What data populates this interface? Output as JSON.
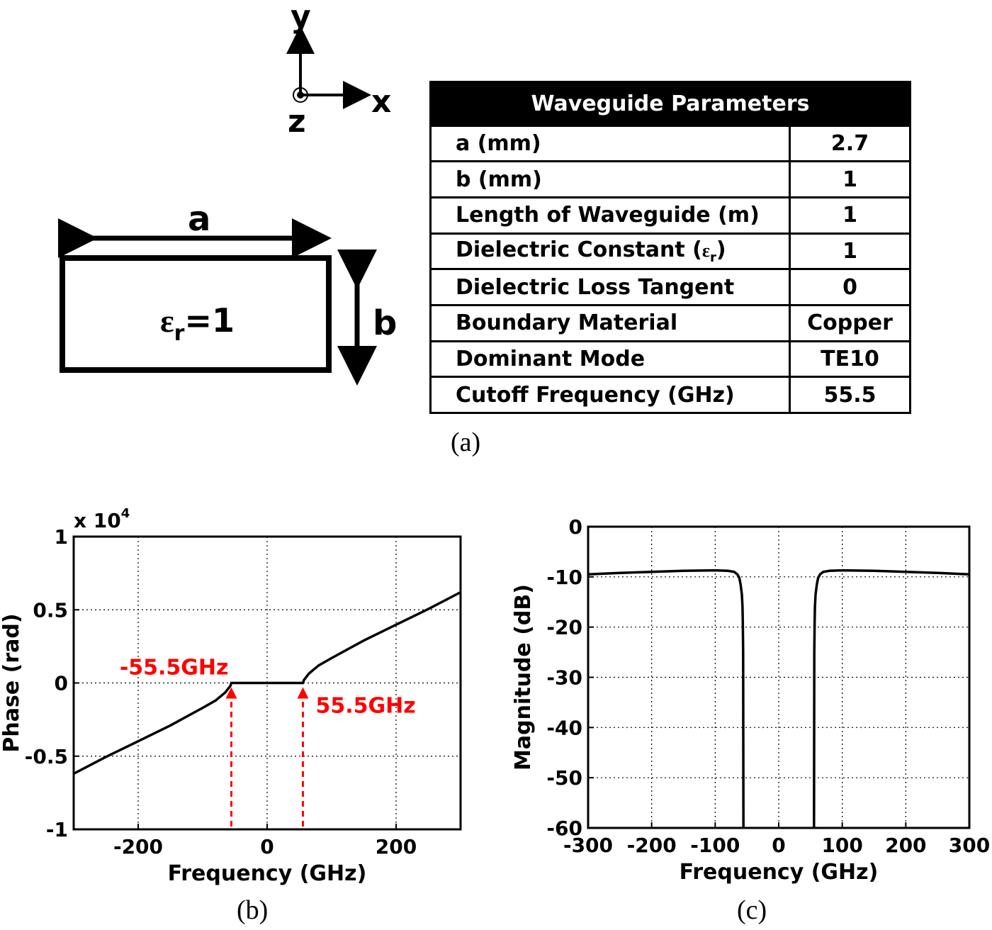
{
  "axes": {
    "y": "y",
    "x": "x",
    "z": "z"
  },
  "cross_section": {
    "width_label": "a",
    "height_label": "b",
    "eps_symbol": "ε",
    "eps_sub": "r",
    "eps_value": "=1"
  },
  "table": {
    "title": "Waveguide Parameters",
    "rows": [
      {
        "label": "a (mm)",
        "value": "2.7"
      },
      {
        "label": "b (mm)",
        "value": "1"
      },
      {
        "label": "Length of Waveguide (m)",
        "value": "1"
      },
      {
        "label": "Dielectric Constant (",
        "label_sym": "ε",
        "label_sub": "r",
        "label_end": ")",
        "value": "1"
      },
      {
        "label": "Dielectric Loss Tangent",
        "value": "0"
      },
      {
        "label": "Boundary Material",
        "value": "Copper"
      },
      {
        "label": "Dominant Mode",
        "value": "TE10"
      },
      {
        "label": "Cutoff Frequency (GHz)",
        "value": "55.5"
      }
    ]
  },
  "subfigure_labels": [
    "(a)",
    "(b)",
    "(c)"
  ],
  "chart_data": [
    {
      "type": "line",
      "xlabel": "Frequency (GHz)",
      "ylabel": "Phase (rad)",
      "y_multiplier": "x 10",
      "y_multiplier_exp": "4",
      "xlim": [
        -300,
        300
      ],
      "ylim": [
        -1,
        1
      ],
      "x_ticks": [
        -200,
        0,
        200
      ],
      "y_ticks": [
        1,
        0.5,
        0,
        -0.5,
        -1
      ],
      "x_tick_labels": [
        "-200",
        "0",
        "200"
      ],
      "y_tick_labels": [
        "1",
        "0.5",
        "0",
        "-0.5",
        "-1"
      ],
      "grid": true,
      "series": [
        {
          "x": [
            -300,
            -250,
            -200,
            -150,
            -100,
            -80,
            -65,
            -57,
            -55.5,
            55.5,
            57,
            65,
            80,
            100,
            150,
            200,
            250,
            300
          ],
          "y": [
            -0.62,
            -0.505,
            -0.398,
            -0.29,
            -0.17,
            -0.12,
            -0.065,
            -0.02,
            0,
            0,
            0.02,
            0.065,
            0.12,
            0.17,
            0.29,
            0.398,
            0.505,
            0.62
          ]
        }
      ],
      "annotations": [
        {
          "text": "-55.5GHz",
          "x": -55.5,
          "color": "#ff0000"
        },
        {
          "text": "55.5GHz",
          "x": 55.5,
          "color": "#ff0000"
        }
      ]
    },
    {
      "type": "line",
      "xlabel": "Frequency (GHz)",
      "ylabel": "Magnitude (dB)",
      "xlim": [
        -300,
        300
      ],
      "ylim": [
        -60,
        0
      ],
      "x_ticks": [
        -300,
        -200,
        -100,
        0,
        100,
        200,
        300
      ],
      "y_ticks": [
        0,
        -10,
        -20,
        -30,
        -40,
        -50,
        -60
      ],
      "x_tick_labels": [
        "-300",
        "-200",
        "-100",
        "0",
        "100",
        "200",
        "300"
      ],
      "y_tick_labels": [
        "0",
        "-10",
        "-20",
        "-30",
        "-40",
        "-50",
        "-60"
      ],
      "grid": true,
      "series": [
        {
          "x": [
            -300,
            -250,
            -200,
            -150,
            -100,
            -80,
            -70,
            -65,
            -62,
            -60,
            -58,
            -57,
            -56.5,
            -56,
            -55.5
          ],
          "y": [
            -9.5,
            -9.2,
            -9.0,
            -8.8,
            -8.7,
            -8.8,
            -9.0,
            -9.5,
            -10.2,
            -11.5,
            -13.5,
            -16,
            -19,
            -25,
            -60
          ]
        },
        {
          "x": [
            55.5,
            56,
            56.5,
            57,
            58,
            60,
            62,
            65,
            70,
            80,
            100,
            150,
            200,
            250,
            300
          ],
          "y": [
            -60,
            -25,
            -19,
            -16,
            -13.5,
            -11.5,
            -10.2,
            -9.5,
            -9.0,
            -8.8,
            -8.7,
            -8.8,
            -9.0,
            -9.2,
            -9.5
          ]
        }
      ]
    }
  ]
}
